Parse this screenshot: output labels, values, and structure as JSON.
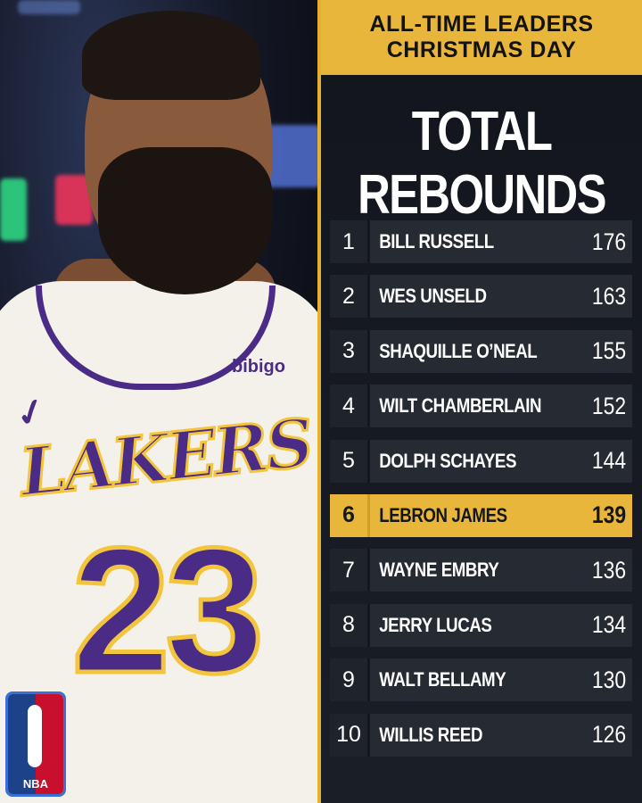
{
  "header": {
    "line1": "ALL-TIME LEADERS",
    "line2": "CHRISTMAS DAY"
  },
  "stat_title": "TOTAL REBOUNDS",
  "photo": {
    "jersey_team": "LAKERS",
    "jersey_number": "23",
    "sponsor": "bibigo"
  },
  "logo": {
    "text": "NBA"
  },
  "leaders": [
    {
      "rank": "1",
      "name": "BILL RUSSELL",
      "value": "176"
    },
    {
      "rank": "2",
      "name": "WES UNSELD",
      "value": "163"
    },
    {
      "rank": "3",
      "name": "SHAQUILLE O’NEAL",
      "value": "155"
    },
    {
      "rank": "4",
      "name": "WILT CHAMBERLAIN",
      "value": "152"
    },
    {
      "rank": "5",
      "name": "DOLPH SCHAYES",
      "value": "144"
    },
    {
      "rank": "6",
      "name": "LEBRON JAMES",
      "value": "139"
    },
    {
      "rank": "7",
      "name": "WAYNE EMBRY",
      "value": "136"
    },
    {
      "rank": "8",
      "name": "JERRY LUCAS",
      "value": "134"
    },
    {
      "rank": "9",
      "name": "WALT BELLAMY",
      "value": "130"
    },
    {
      "rank": "10",
      "name": "WILLIS REED",
      "value": "126"
    }
  ],
  "colors": {
    "accent": "#e8b63a",
    "row_bg": "#262a33",
    "lakers_purple": "#4a2b86"
  }
}
